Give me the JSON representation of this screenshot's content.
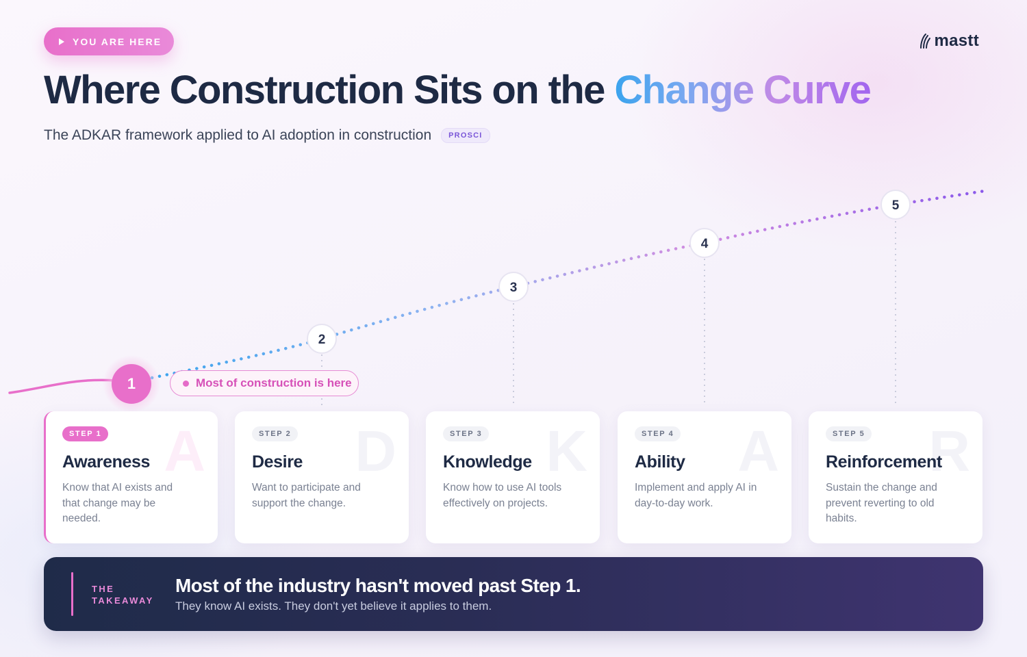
{
  "badge": {
    "label": "YOU ARE HERE"
  },
  "logo": {
    "text": "mastt",
    "icon": "mastt-logo-icon"
  },
  "header": {
    "title_main": "Where Construction Sits on the ",
    "title_accent": "Change Curve",
    "subtitle": "The ADKAR framework applied to AI adoption in construction",
    "tag": "PROSCI"
  },
  "curve": {
    "nodes": [
      {
        "number": "1",
        "level": 1
      },
      {
        "number": "2",
        "level": 2
      },
      {
        "number": "3",
        "level": 3
      },
      {
        "number": "4",
        "level": 4
      },
      {
        "number": "5",
        "level": 5
      }
    ],
    "callout": "Most of construction is here",
    "colors": {
      "start": "#3aa4ee",
      "mid": "#c98ae2",
      "end": "#8a58ea",
      "active": "#e86fca"
    }
  },
  "steps": [
    {
      "badge": "STEP 1",
      "title": "Awareness",
      "letter": "A",
      "desc": "Know that AI exists and that change may be needed."
    },
    {
      "badge": "STEP 2",
      "title": "Desire",
      "letter": "D",
      "desc": "Want to participate and support the change."
    },
    {
      "badge": "STEP 3",
      "title": "Knowledge",
      "letter": "K",
      "desc": "Know how to use AI tools effectively on projects."
    },
    {
      "badge": "STEP 4",
      "title": "Ability",
      "letter": "A",
      "desc": "Implement and apply AI in day-to-day work."
    },
    {
      "badge": "STEP 5",
      "title": "Reinforcement",
      "letter": "R",
      "desc": "Sustain the change and prevent reverting to old habits."
    }
  ],
  "takeaway": {
    "label": "THE TAKEAWAY",
    "headline": "Most of the industry hasn't moved past Step 1.",
    "sub": "They know AI exists. They don't yet believe it applies to them."
  }
}
